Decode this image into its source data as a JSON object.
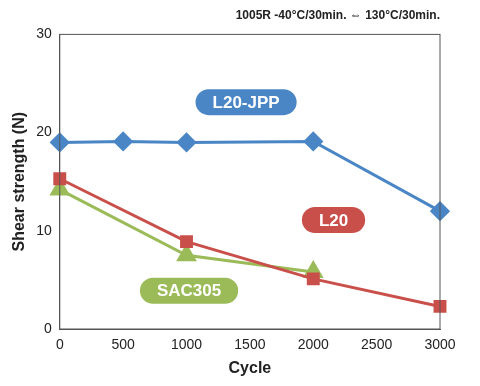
{
  "chart_data": {
    "type": "line",
    "title": "1005R -40°C/30min. ⇔ 130°C/30min.",
    "x_label": "Cycle",
    "y_label": "Shear strength (N)",
    "xlim": [
      0,
      3000
    ],
    "xticks": [
      0,
      500,
      1000,
      1500,
      2000,
      2500,
      3000
    ],
    "ylim": [
      0,
      30
    ],
    "yticks": [
      0,
      10,
      20,
      30
    ],
    "grid": false,
    "series": [
      {
        "name": "L20-JPP",
        "color": "#4a86c5",
        "marker": "diamond",
        "x": [
          0,
          500,
          1000,
          2000,
          3000
        ],
        "values": [
          19,
          19.1,
          19,
          19.1,
          12
        ]
      },
      {
        "name": "L20",
        "color": "#c9504a",
        "marker": "square",
        "x": [
          0,
          1000,
          2000,
          3000
        ],
        "values": [
          15.3,
          8.9,
          5.1,
          2.3
        ]
      },
      {
        "name": "SAC305",
        "color": "#9bbb59",
        "marker": "triangle",
        "x": [
          0,
          1000,
          2000
        ],
        "values": [
          14.2,
          7.5,
          5.8
        ]
      }
    ]
  }
}
